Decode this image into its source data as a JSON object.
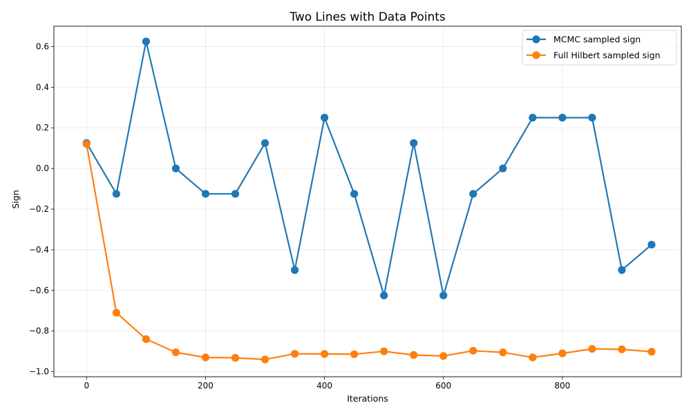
{
  "chart_data": {
    "type": "line",
    "title": "Two Lines with Data Points",
    "xlabel": "Iterations",
    "ylabel": "Sign",
    "xlim": [
      -55,
      1000
    ],
    "ylim": [
      -1.025,
      0.7
    ],
    "xticks": [
      0,
      200,
      400,
      600,
      800
    ],
    "xtick_labels": [
      "0",
      "200",
      "400",
      "600",
      "800"
    ],
    "yticks": [
      -1.0,
      -0.8,
      -0.6,
      -0.4,
      -0.2,
      0.0,
      0.2,
      0.4,
      0.6
    ],
    "ytick_labels": [
      "−1.0",
      "−0.8",
      "−0.6",
      "−0.4",
      "−0.2",
      "0.0",
      "0.2",
      "0.4",
      "0.6"
    ],
    "grid": true,
    "legend_position": "top-right",
    "x": [
      0,
      50,
      100,
      150,
      200,
      250,
      300,
      350,
      400,
      450,
      500,
      550,
      600,
      650,
      700,
      750,
      800,
      850,
      900,
      950
    ],
    "series": [
      {
        "name": "MCMC sampled sign",
        "color": "#1f77b4",
        "values": [
          0.125,
          -0.125,
          0.625,
          0.0,
          -0.125,
          -0.125,
          0.125,
          -0.5,
          0.25,
          -0.125,
          -0.625,
          0.125,
          -0.625,
          -0.125,
          0.0,
          0.25,
          0.25,
          0.25,
          -0.5,
          -0.375
        ]
      },
      {
        "name": "Full Hilbert sampled sign",
        "color": "#ff7f0e",
        "values": [
          0.12,
          -0.71,
          -0.84,
          -0.905,
          -0.93,
          -0.932,
          -0.94,
          -0.912,
          -0.913,
          -0.914,
          -0.9,
          -0.918,
          -0.923,
          -0.897,
          -0.905,
          -0.93,
          -0.91,
          -0.888,
          -0.89,
          -0.902
        ]
      }
    ]
  }
}
